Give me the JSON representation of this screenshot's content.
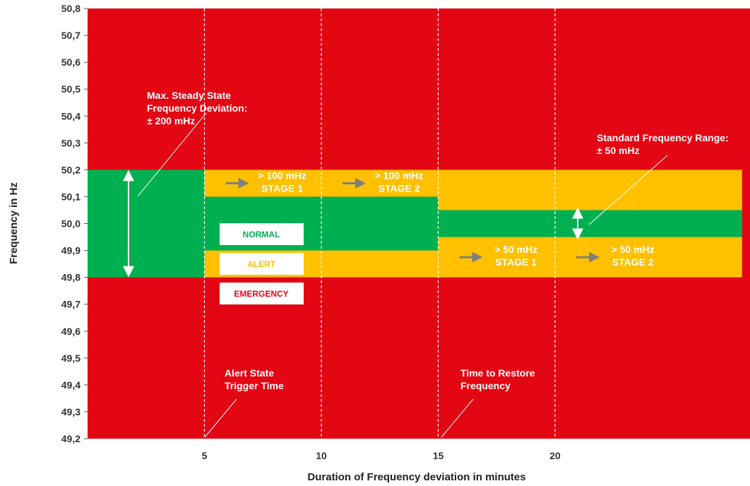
{
  "chart_data": {
    "type": "area",
    "title": "",
    "xlabel": "Duration of Frequency deviation in minutes",
    "ylabel": "Frequency  in Hz",
    "xlim": [
      0,
      28
    ],
    "ylim": [
      49.2,
      50.8
    ],
    "x_ticks": [
      {
        "value": 5,
        "label": "5"
      },
      {
        "value": 10,
        "label": "10"
      },
      {
        "value": 15,
        "label": "15"
      },
      {
        "value": 20,
        "label": "20"
      }
    ],
    "y_ticks": [
      {
        "value": 50.8,
        "label": "50,8"
      },
      {
        "value": 50.7,
        "label": "50,7"
      },
      {
        "value": 50.6,
        "label": "50,6"
      },
      {
        "value": 50.5,
        "label": "50,5"
      },
      {
        "value": 50.4,
        "label": "50,4"
      },
      {
        "value": 50.3,
        "label": "50,3"
      },
      {
        "value": 50.2,
        "label": "50,2"
      },
      {
        "value": 50.1,
        "label": "50,1"
      },
      {
        "value": 50.0,
        "label": "50,0"
      },
      {
        "value": 49.9,
        "label": "49,9"
      },
      {
        "value": 49.8,
        "label": "49,8"
      },
      {
        "value": 49.7,
        "label": "49,7"
      },
      {
        "value": 49.6,
        "label": "49,6"
      },
      {
        "value": 49.5,
        "label": "49,5"
      },
      {
        "value": 49.4,
        "label": "49,4"
      },
      {
        "value": 49.3,
        "label": "49,3"
      },
      {
        "value": 49.2,
        "label": "49,2"
      }
    ],
    "vertical_gridlines": [
      5,
      10,
      15,
      20
    ],
    "colors": {
      "normal": "#00b050",
      "alert": "#ffc000",
      "emergency": "#e30613",
      "gridline": "#ffffff"
    },
    "regions": [
      {
        "state": "normal",
        "x": [
          0,
          5
        ],
        "y": [
          49.8,
          50.2
        ]
      },
      {
        "state": "alert",
        "x": [
          5,
          15
        ],
        "y": [
          50.1,
          50.2
        ]
      },
      {
        "state": "alert",
        "x": [
          5,
          15
        ],
        "y": [
          49.8,
          49.9
        ]
      },
      {
        "state": "normal",
        "x": [
          5,
          15
        ],
        "y": [
          49.9,
          50.1
        ]
      },
      {
        "state": "alert",
        "x": [
          15,
          28
        ],
        "y": [
          50.05,
          50.2
        ]
      },
      {
        "state": "alert",
        "x": [
          15,
          28
        ],
        "y": [
          49.8,
          49.95
        ]
      },
      {
        "state": "normal",
        "x": [
          15,
          28
        ],
        "y": [
          49.95,
          50.05
        ]
      }
    ],
    "legend": [
      {
        "label": "NORMAL",
        "state": "normal"
      },
      {
        "label": "ALERT",
        "state": "alert"
      },
      {
        "label": "EMERGENCY",
        "state": "emergency"
      }
    ],
    "stage_labels": [
      {
        "lines": [
          "> 100 mHz",
          "STAGE  1"
        ],
        "x": 6.0,
        "y": 50.15
      },
      {
        "lines": [
          "> 100 mHz",
          "STAGE  2"
        ],
        "x": 11.0,
        "y": 50.15
      },
      {
        "lines": [
          "> 50 mHz",
          "STAGE  1"
        ],
        "x": 16.0,
        "y": 49.875
      },
      {
        "lines": [
          "> 50 mHz",
          "STAGE  2"
        ],
        "x": 21.0,
        "y": 49.875
      }
    ],
    "annotations": [
      {
        "lines": [
          "Max. Steady State",
          "Frequency Deviation:",
          "± 200 mHz"
        ]
      },
      {
        "lines": [
          "Standard Frequency Range:",
          "± 50 mHz"
        ]
      },
      {
        "lines": [
          "Alert State",
          "Trigger Time"
        ]
      },
      {
        "lines": [
          "Time to Restore",
          "Frequency"
        ]
      }
    ]
  }
}
